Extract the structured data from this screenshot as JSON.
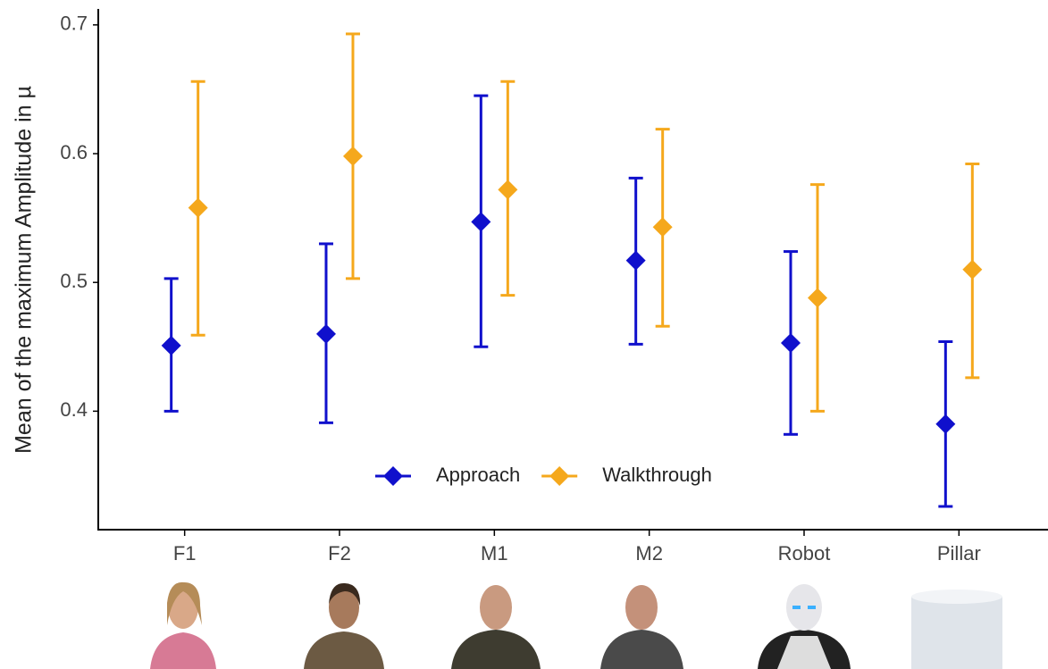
{
  "chart_data": {
    "type": "errorbar",
    "y_label": "Mean of the maximum Amplitude in µ",
    "categories": [
      "F1",
      "F2",
      "M1",
      "M2",
      "Robot",
      "Pillar"
    ],
    "series": [
      {
        "name": "Approach",
        "color": "#1010cc",
        "values": [
          0.451,
          0.46,
          0.547,
          0.517,
          0.453,
          0.39
        ],
        "lower": [
          0.4,
          0.391,
          0.45,
          0.452,
          0.382,
          0.326
        ],
        "upper": [
          0.503,
          0.53,
          0.645,
          0.581,
          0.524,
          0.454
        ]
      },
      {
        "name": "Walkthrough",
        "color": "#f5a81c",
        "values": [
          0.558,
          0.598,
          0.572,
          0.543,
          0.488,
          0.51
        ],
        "lower": [
          0.459,
          0.503,
          0.49,
          0.466,
          0.4,
          0.426
        ],
        "upper": [
          0.656,
          0.693,
          0.656,
          0.619,
          0.576,
          0.592
        ]
      }
    ],
    "ylim": [
      0.308,
      0.711
    ],
    "yticks": [
      0.4,
      0.5,
      0.6,
      0.7
    ],
    "grid": false,
    "legend": "bottom"
  }
}
